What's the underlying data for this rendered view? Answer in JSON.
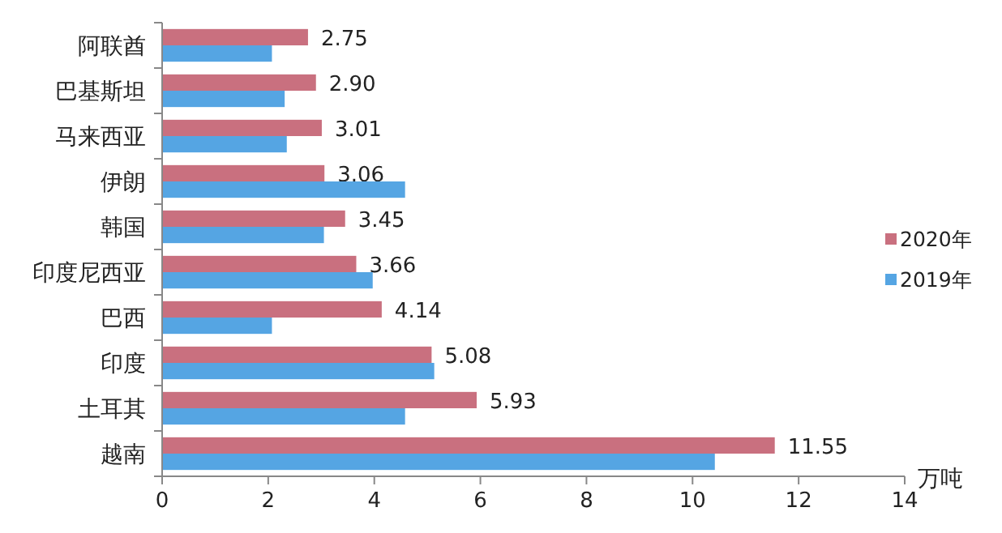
{
  "chart_data": {
    "type": "bar",
    "orientation": "horizontal",
    "xlabel": "万吨",
    "categories": [
      "阿联酋",
      "巴基斯坦",
      "马来西亚",
      "伊朗",
      "韩国",
      "印度尼西亚",
      "巴西",
      "印度",
      "土耳其",
      "越南"
    ],
    "series": [
      {
        "name": "2020年",
        "color": "#c9707f",
        "values": [
          2.75,
          2.9,
          3.01,
          3.06,
          3.45,
          3.66,
          4.14,
          5.08,
          5.93,
          11.55
        ],
        "value_labels": [
          "2.75",
          "2.90",
          "3.01",
          "3.06",
          "3.45",
          "3.66",
          "4.14",
          "5.08",
          "5.93",
          "11.55"
        ]
      },
      {
        "name": "2019年",
        "color": "#55a5e3",
        "values": [
          2.07,
          2.31,
          2.35,
          4.58,
          3.05,
          3.97,
          2.07,
          5.13,
          4.58,
          10.42
        ]
      }
    ],
    "xlim": [
      0,
      14
    ],
    "xticks": [
      0,
      2,
      4,
      6,
      8,
      10,
      12,
      14
    ],
    "grid": false,
    "legend": "right"
  }
}
